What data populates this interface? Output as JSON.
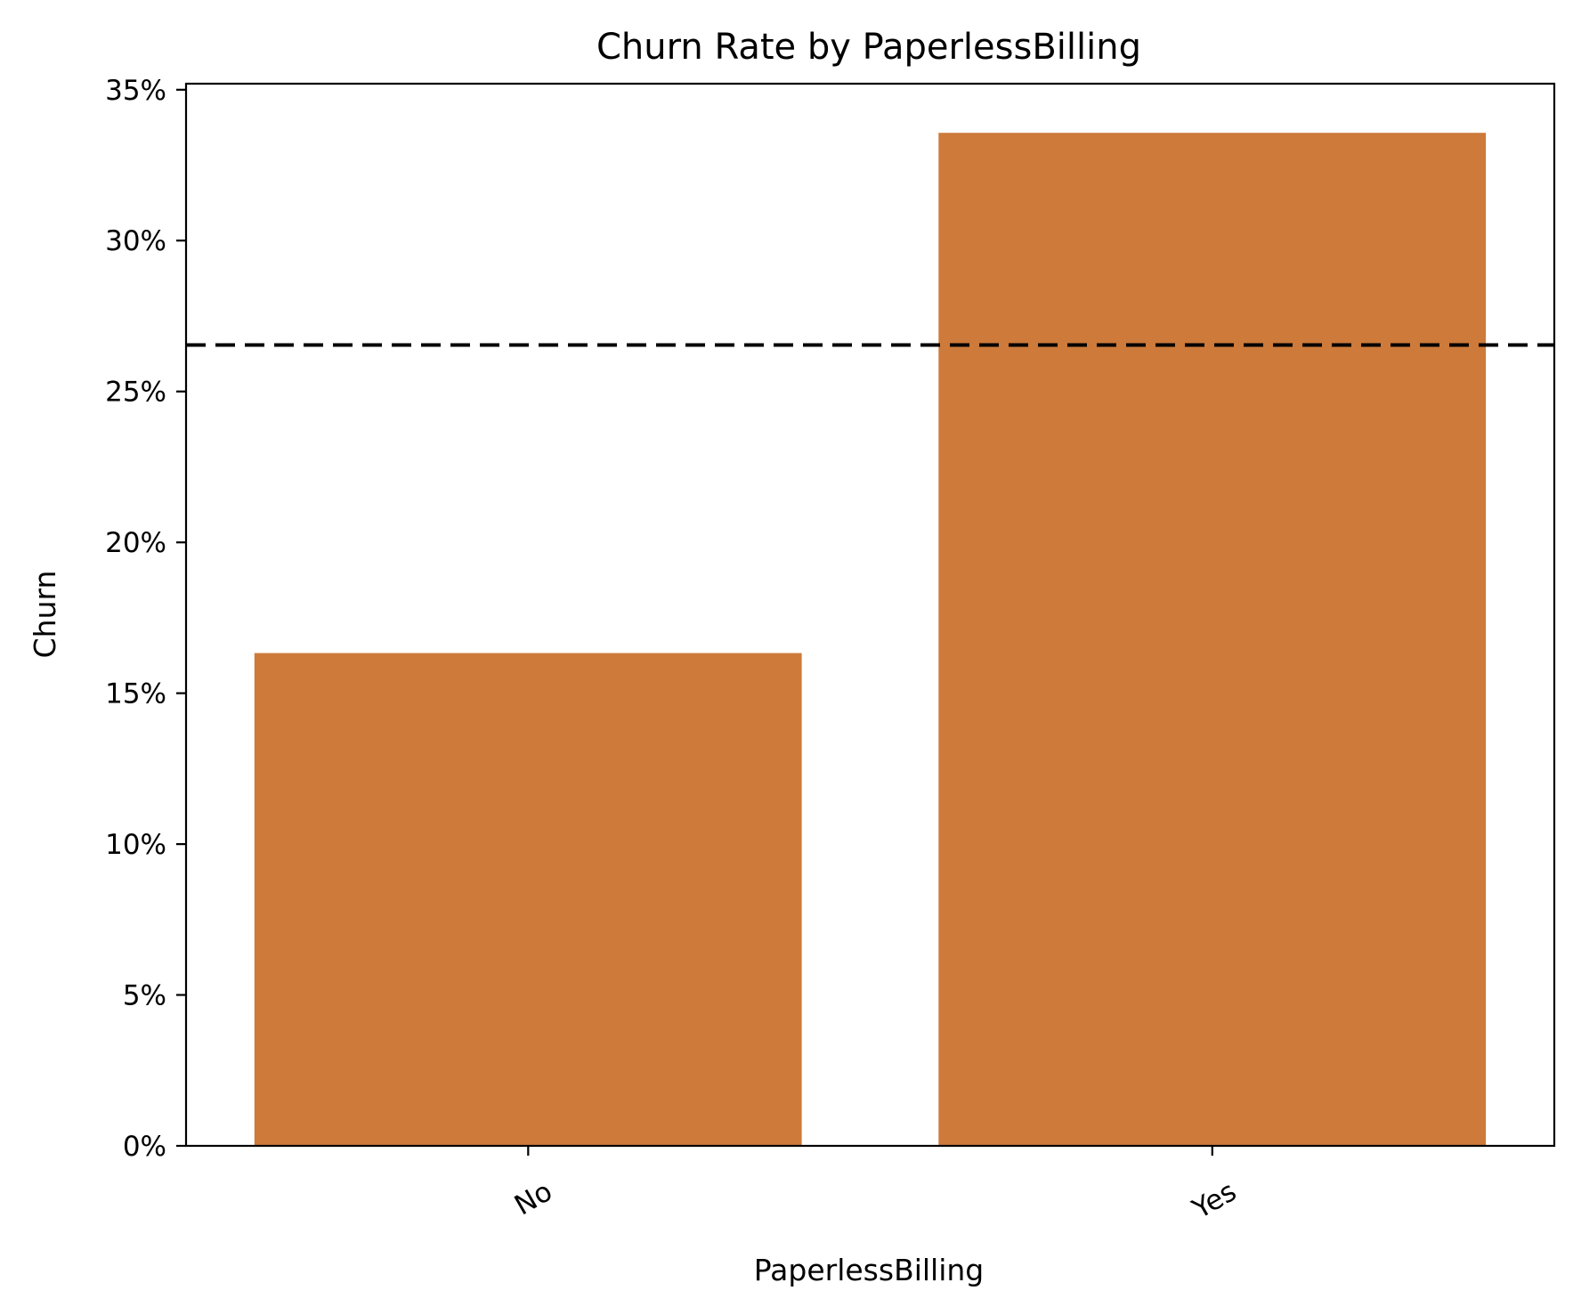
{
  "chart_data": {
    "type": "bar",
    "title": "Churn Rate by PaperlessBilling",
    "xlabel": "PaperlessBilling",
    "ylabel": "Churn",
    "categories": [
      "No",
      "Yes"
    ],
    "values": [
      0.1633,
      0.3357
    ],
    "ylim": [
      0,
      0.352
    ],
    "yticks": [
      0,
      0.05,
      0.1,
      0.15,
      0.2,
      0.25,
      0.3,
      0.35
    ],
    "ytick_labels": [
      "0%",
      "5%",
      "10%",
      "15%",
      "20%",
      "25%",
      "30%",
      "35%"
    ],
    "reference_line": {
      "value": 0.2654,
      "style": "dashed"
    },
    "bar_color": "#CD7A3A",
    "grid": false,
    "x_tick_rotation_deg": -30
  }
}
